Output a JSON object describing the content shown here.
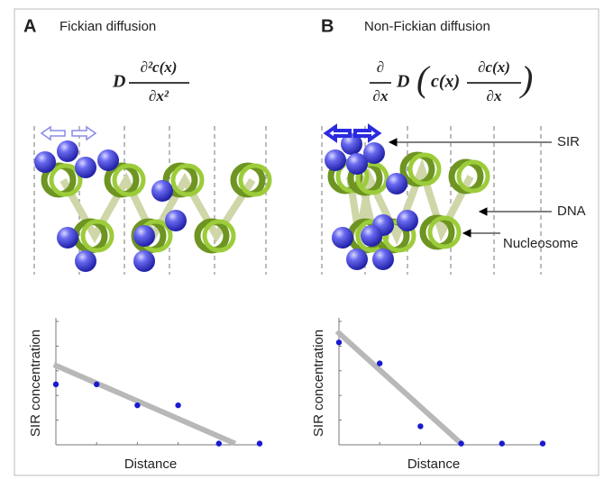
{
  "panels": [
    {
      "label": "A",
      "title": "Fickian diffusion",
      "formula": {
        "coefficient": "D",
        "numerator": "∂²c(x)",
        "denominator": "∂x²"
      }
    },
    {
      "label": "B",
      "title": "Non-Fickian diffusion",
      "formula": {
        "operator_numerator": "∂",
        "operator_denominator": "∂x",
        "coefficient": "D",
        "term": "c(x)",
        "numerator": "∂c(x)",
        "denominator": "∂x"
      },
      "annotations": [
        "SIR",
        "DNA",
        "Nucleosome"
      ]
    }
  ],
  "chart_data": [
    {
      "type": "scatter",
      "x_label": "Distance",
      "y_label": "SIR concentration",
      "x": [
        0,
        2,
        4,
        6,
        8,
        10
      ],
      "values": [
        4.9,
        4.9,
        3.2,
        3.2,
        0.1,
        0.1
      ],
      "color": "#1a1ad0",
      "fit_line": {
        "x": [
          -0.1,
          8.8
        ],
        "values": [
          6.5,
          0.1
        ],
        "color": "#b8b8b8"
      },
      "xlim": [
        0,
        10
      ],
      "ylim": [
        0,
        10
      ],
      "xticks": [
        0,
        2,
        4,
        6,
        8,
        10
      ],
      "yticks": [
        0,
        2,
        4,
        6,
        8,
        10
      ]
    },
    {
      "type": "scatter",
      "x_label": "Distance",
      "y_label": "SIR concentration",
      "x": [
        0,
        2,
        4,
        6,
        8,
        10
      ],
      "values": [
        8.3,
        6.6,
        1.5,
        0.1,
        0.1,
        0.1
      ],
      "color": "#1a1ad0",
      "fit_line": {
        "x": [
          -0.1,
          6
        ],
        "values": [
          9.2,
          0.1
        ],
        "color": "#b8b8b8"
      },
      "xlim": [
        0,
        10
      ],
      "ylim": [
        0,
        10
      ],
      "xticks": [
        0,
        2,
        4,
        6,
        8,
        10
      ],
      "yticks": [
        0,
        2,
        4,
        6,
        8,
        10
      ]
    }
  ]
}
